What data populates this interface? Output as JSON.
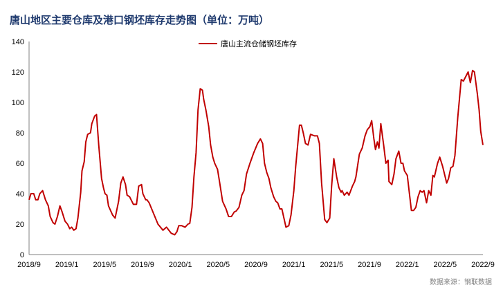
{
  "chart_data": {
    "type": "line",
    "title": "唐山地区主要仓库及港口钢坯库存走势图（单位：万吨）",
    "source": "数据来源：钢联数据",
    "xlabel": "",
    "ylabel": "",
    "ylim": [
      0,
      140
    ],
    "yticks": [
      "0",
      "20",
      "40",
      "60",
      "80",
      "100",
      "120",
      "140"
    ],
    "xlim": [
      "2018-09-01",
      "2022-09-01"
    ],
    "xticks": [
      "2018/9",
      "2019/1",
      "2019/5",
      "2019/9",
      "2020/1",
      "2020/5",
      "2020/9",
      "2021/1",
      "2021/5",
      "2021/9",
      "2022/1",
      "2022/5",
      "2022/9"
    ],
    "grid": false,
    "legend_position": "top-center",
    "series": [
      {
        "name": "唐山主流仓储钢坯库存",
        "color": "#c00000",
        "x": [
          "2018-09-01",
          "2018-09-07",
          "2018-09-16",
          "2018-09-22",
          "2018-09-29",
          "2018-10-05",
          "2018-10-14",
          "2018-10-23",
          "2018-11-02",
          "2018-11-08",
          "2018-11-17",
          "2018-11-23",
          "2018-12-01",
          "2018-12-09",
          "2018-12-16",
          "2018-12-25",
          "2019-01-03",
          "2019-01-10",
          "2019-01-16",
          "2019-01-23",
          "2019-01-30",
          "2019-02-06",
          "2019-02-15",
          "2019-02-19",
          "2019-02-26",
          "2019-03-01",
          "2019-03-07",
          "2019-03-16",
          "2019-03-20",
          "2019-03-29",
          "2019-04-05",
          "2019-04-12",
          "2019-04-21",
          "2019-04-27",
          "2019-05-02",
          "2019-05-08",
          "2019-05-13",
          "2019-05-26",
          "2019-06-04",
          "2019-06-15",
          "2019-06-22",
          "2019-06-29",
          "2019-07-07",
          "2019-07-12",
          "2019-07-20",
          "2019-08-02",
          "2019-08-12",
          "2019-08-19",
          "2019-08-28",
          "2019-09-02",
          "2019-09-11",
          "2019-09-15",
          "2019-09-22",
          "2019-10-20",
          "2019-11-06",
          "2019-11-17",
          "2019-12-02",
          "2019-12-13",
          "2019-12-20",
          "2019-12-26",
          "2020-01-05",
          "2020-01-16",
          "2020-01-25",
          "2020-02-01",
          "2020-02-08",
          "2020-02-14",
          "2020-02-21",
          "2020-02-27",
          "2020-03-04",
          "2020-03-11",
          "2020-03-15",
          "2020-03-22",
          "2020-04-01",
          "2020-04-07",
          "2020-04-14",
          "2020-04-20",
          "2020-04-29",
          "2020-05-06",
          "2020-05-15",
          "2020-05-26",
          "2020-06-04",
          "2020-06-13",
          "2020-06-22",
          "2020-06-28",
          "2020-07-07",
          "2020-07-16",
          "2020-07-23",
          "2020-08-01",
          "2020-08-12",
          "2020-08-24",
          "2020-09-06",
          "2020-09-15",
          "2020-09-22",
          "2020-09-28",
          "2020-10-05",
          "2020-10-12",
          "2020-10-18",
          "2020-10-27",
          "2020-11-04",
          "2020-11-10",
          "2020-11-17",
          "2020-11-23",
          "2020-12-06",
          "2020-12-15",
          "2020-12-22",
          "2021-01-01",
          "2021-01-07",
          "2021-01-19",
          "2021-01-25",
          "2021-02-01",
          "2021-02-08",
          "2021-02-16",
          "2021-02-24",
          "2021-03-07",
          "2021-03-16",
          "2021-03-22",
          "2021-03-29",
          "2021-04-09",
          "2021-04-16",
          "2021-04-25",
          "2021-05-01",
          "2021-05-08",
          "2021-05-17",
          "2021-05-24",
          "2021-05-31",
          "2021-06-04",
          "2021-06-11",
          "2021-06-20",
          "2021-06-26",
          "2021-07-07",
          "2021-07-14",
          "2021-07-18",
          "2021-07-29",
          "2021-08-08",
          "2021-08-17",
          "2021-08-24",
          "2021-09-02",
          "2021-09-08",
          "2021-09-15",
          "2021-09-20",
          "2021-09-26",
          "2021-10-01",
          "2021-10-07",
          "2021-10-16",
          "2021-10-23",
          "2021-10-30",
          "2021-11-03",
          "2021-11-12",
          "2021-11-19",
          "2021-11-25",
          "2021-12-04",
          "2021-12-11",
          "2021-12-17",
          "2021-12-22",
          "2022-01-01",
          "2022-01-14",
          "2022-01-21",
          "2022-01-28",
          "2022-02-05",
          "2022-02-12",
          "2022-02-18",
          "2022-02-24",
          "2022-03-02",
          "2022-03-09",
          "2022-03-16",
          "2022-03-22",
          "2022-03-27",
          "2022-04-07",
          "2022-04-14",
          "2022-04-23",
          "2022-05-06",
          "2022-05-12",
          "2022-05-19",
          "2022-05-26",
          "2022-06-02",
          "2022-06-11",
          "2022-06-22",
          "2022-06-29",
          "2022-07-14",
          "2022-07-21",
          "2022-07-28",
          "2022-08-04",
          "2022-08-13",
          "2022-08-19",
          "2022-08-24",
          "2022-08-31"
        ],
        "values": [
          36,
          40,
          40,
          36,
          36,
          40,
          42,
          36,
          32,
          25,
          21,
          20,
          25,
          32,
          28,
          22,
          20,
          17,
          18,
          16,
          17,
          24,
          41,
          55,
          61,
          74,
          79,
          80,
          86,
          91,
          92,
          72,
          50,
          44,
          40,
          39,
          32,
          26,
          24,
          35,
          47,
          51,
          46,
          39,
          38,
          33,
          33,
          45,
          46,
          40,
          36,
          36,
          34,
          20,
          16,
          18,
          14,
          13,
          15,
          19,
          19,
          18,
          20,
          20.5,
          31,
          51,
          67,
          95,
          109,
          108,
          102,
          95,
          84,
          72,
          64,
          60,
          56,
          47,
          35,
          30,
          25,
          25,
          28,
          28.6,
          31,
          39,
          42,
          53,
          60,
          67,
          73,
          76,
          73,
          60,
          54,
          50,
          44,
          38,
          35,
          34,
          30,
          30,
          18,
          19,
          26,
          42,
          58,
          85,
          85,
          80,
          73,
          72,
          79,
          78,
          78,
          73,
          47,
          23,
          21,
          24,
          45,
          63,
          51,
          44,
          41,
          42,
          39,
          41,
          39,
          45,
          48,
          51,
          66,
          70,
          78,
          82,
          84,
          88,
          76,
          69,
          74,
          70,
          86,
          72,
          60,
          62,
          48,
          46,
          53,
          63,
          68,
          60,
          60,
          55,
          52,
          29,
          29,
          31,
          38,
          42,
          41,
          42,
          34,
          42,
          39,
          52,
          51,
          60,
          64,
          58,
          47,
          50,
          57,
          58,
          65,
          90,
          115,
          114,
          120,
          113,
          121,
          120,
          106,
          95,
          81,
          72
        ]
      }
    ]
  }
}
